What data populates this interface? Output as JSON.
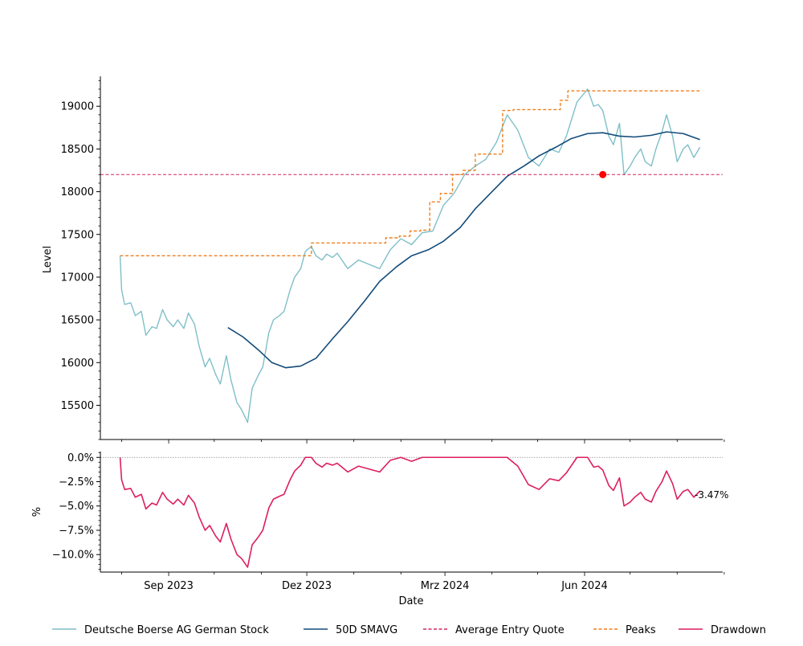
{
  "chart_data": [
    {
      "type": "line",
      "xlabel": "",
      "ylabel": "Level",
      "x_range": [
        "2023-07-18",
        "2024-08-31"
      ],
      "ylim": [
        15100,
        19350
      ],
      "yticks": [
        15500,
        16000,
        16500,
        17000,
        17500,
        18000,
        18500,
        19000
      ],
      "ytick_labels": [
        "15500",
        "16000",
        "16500",
        "17000",
        "17500",
        "18000",
        "18500",
        "19000"
      ],
      "grid": false,
      "series": [
        {
          "name": "Deutsche Boerse AG German Stock",
          "color": "#7fbfc8",
          "x": [
            "2023-07-31",
            "2023-08-01",
            "2023-08-03",
            "2023-08-07",
            "2023-08-10",
            "2023-08-14",
            "2023-08-17",
            "2023-08-21",
            "2023-08-24",
            "2023-08-28",
            "2023-08-31",
            "2023-09-04",
            "2023-09-07",
            "2023-09-11",
            "2023-09-14",
            "2023-09-18",
            "2023-09-21",
            "2023-09-25",
            "2023-09-28",
            "2023-10-02",
            "2023-10-05",
            "2023-10-09",
            "2023-10-12",
            "2023-10-16",
            "2023-10-19",
            "2023-10-23",
            "2023-10-26",
            "2023-10-30",
            "2023-11-02",
            "2023-11-06",
            "2023-11-09",
            "2023-11-13",
            "2023-11-16",
            "2023-11-20",
            "2023-11-23",
            "2023-11-27",
            "2023-11-30",
            "2023-12-04",
            "2023-12-07",
            "2023-12-11",
            "2023-12-14",
            "2023-12-18",
            "2023-12-21",
            "2023-12-28",
            "2024-01-04",
            "2024-01-11",
            "2024-01-18",
            "2024-01-25",
            "2024-02-01",
            "2024-02-08",
            "2024-02-15",
            "2024-02-22",
            "2024-02-29",
            "2024-03-07",
            "2024-03-14",
            "2024-03-21",
            "2024-03-28",
            "2024-04-04",
            "2024-04-11",
            "2024-04-18",
            "2024-04-25",
            "2024-05-02",
            "2024-05-09",
            "2024-05-15",
            "2024-05-20",
            "2024-05-27",
            "2024-06-03",
            "2024-06-07",
            "2024-06-10",
            "2024-06-13",
            "2024-06-17",
            "2024-06-20",
            "2024-06-24",
            "2024-06-27",
            "2024-07-01",
            "2024-07-04",
            "2024-07-08",
            "2024-07-11",
            "2024-07-15",
            "2024-07-18",
            "2024-07-22",
            "2024-07-25",
            "2024-07-29",
            "2024-08-01",
            "2024-08-05",
            "2024-08-08",
            "2024-08-12",
            "2024-08-16"
          ],
          "values": [
            17250,
            16850,
            16680,
            16700,
            16550,
            16600,
            16320,
            16420,
            16400,
            16620,
            16500,
            16420,
            16500,
            16400,
            16580,
            16450,
            16200,
            15950,
            16050,
            15860,
            15750,
            16080,
            15800,
            15530,
            15450,
            15300,
            15700,
            15850,
            15950,
            16350,
            16500,
            16550,
            16600,
            16850,
            17000,
            17100,
            17300,
            17360,
            17250,
            17200,
            17270,
            17230,
            17280,
            17100,
            17200,
            17150,
            17100,
            17320,
            17450,
            17380,
            17520,
            17540,
            17840,
            17980,
            18200,
            18300,
            18380,
            18580,
            18900,
            18720,
            18400,
            18300,
            18500,
            18460,
            18650,
            19050,
            19200,
            19000,
            19020,
            18950,
            18650,
            18550,
            18800,
            18200,
            18300,
            18400,
            18500,
            18350,
            18300,
            18500,
            18700,
            18900,
            18650,
            18350,
            18500,
            18550,
            18400,
            18520
          ]
        },
        {
          "name": "50D SMAVG",
          "color": "#134b7a",
          "x": [
            "2023-10-10",
            "2023-10-20",
            "2023-10-30",
            "2023-11-08",
            "2023-11-17",
            "2023-11-27",
            "2023-12-07",
            "2023-12-18",
            "2023-12-28",
            "2024-01-08",
            "2024-01-18",
            "2024-01-29",
            "2024-02-08",
            "2024-02-19",
            "2024-02-29",
            "2024-03-11",
            "2024-03-21",
            "2024-04-01",
            "2024-04-11",
            "2024-04-22",
            "2024-05-02",
            "2024-05-13",
            "2024-05-23",
            "2024-06-03",
            "2024-06-13",
            "2024-06-24",
            "2024-07-04",
            "2024-07-15",
            "2024-07-25",
            "2024-08-05",
            "2024-08-16"
          ],
          "values": [
            16410,
            16300,
            16150,
            16000,
            15940,
            15960,
            16050,
            16280,
            16480,
            16720,
            16950,
            17120,
            17250,
            17320,
            17420,
            17580,
            17800,
            18000,
            18180,
            18300,
            18420,
            18520,
            18620,
            18680,
            18690,
            18650,
            18640,
            18660,
            18700,
            18680,
            18610
          ]
        },
        {
          "name": "Average Entry Quote",
          "color": "#d0265c",
          "style": "dashed",
          "value": 18200
        },
        {
          "name": "Peaks",
          "color": "#f07f1d",
          "style": "dashed",
          "x": [
            "2023-07-31",
            "2023-11-30",
            "2023-12-04",
            "2024-01-18",
            "2024-01-22",
            "2024-01-31",
            "2024-02-07",
            "2024-02-14",
            "2024-02-20",
            "2024-02-27",
            "2024-03-06",
            "2024-03-13",
            "2024-03-21",
            "2024-04-08",
            "2024-04-15",
            "2024-05-08",
            "2024-05-16",
            "2024-05-21",
            "2024-08-16"
          ],
          "values": [
            17250,
            17250,
            17400,
            17400,
            17460,
            17480,
            17540,
            17550,
            17880,
            17980,
            18200,
            18250,
            18440,
            18950,
            18960,
            18960,
            19070,
            19180,
            19180
          ]
        }
      ],
      "markers": [
        {
          "label": "entry",
          "x": "2024-06-13",
          "y": 18200,
          "color": "#ff0000"
        }
      ]
    },
    {
      "type": "line",
      "xlabel": "Date",
      "ylabel": "%",
      "x_range": [
        "2023-07-18",
        "2024-08-31"
      ],
      "ylim": [
        -11.8,
        0.6
      ],
      "yticks": [
        0,
        -2.5,
        -5,
        -7.5,
        -10
      ],
      "ytick_labels": [
        "0.0%",
        "−2.5%",
        "−5.0%",
        "−7.5%",
        "−10.0%"
      ],
      "xticks": [
        "2023-09-01",
        "2023-12-01",
        "2024-03-01",
        "2024-06-01"
      ],
      "xtick_labels": [
        "Sep 2023",
        "Dez 2023",
        "Mrz 2024",
        "Jun 2024"
      ],
      "grid": false,
      "series": [
        {
          "name": "Drawdown",
          "color": "#dc1f5c",
          "x": [
            "2023-07-31",
            "2023-08-01",
            "2023-08-03",
            "2023-08-07",
            "2023-08-10",
            "2023-08-14",
            "2023-08-17",
            "2023-08-21",
            "2023-08-24",
            "2023-08-28",
            "2023-08-31",
            "2023-09-04",
            "2023-09-07",
            "2023-09-11",
            "2023-09-14",
            "2023-09-18",
            "2023-09-21",
            "2023-09-25",
            "2023-09-28",
            "2023-10-02",
            "2023-10-05",
            "2023-10-09",
            "2023-10-12",
            "2023-10-16",
            "2023-10-19",
            "2023-10-23",
            "2023-10-26",
            "2023-10-30",
            "2023-11-02",
            "2023-11-06",
            "2023-11-09",
            "2023-11-13",
            "2023-11-16",
            "2023-11-20",
            "2023-11-23",
            "2023-11-27",
            "2023-11-30",
            "2023-12-04",
            "2023-12-07",
            "2023-12-11",
            "2023-12-14",
            "2023-12-18",
            "2023-12-21",
            "2023-12-28",
            "2024-01-04",
            "2024-01-11",
            "2024-01-18",
            "2024-01-25",
            "2024-02-01",
            "2024-02-08",
            "2024-02-15",
            "2024-02-22",
            "2024-02-29",
            "2024-03-07",
            "2024-03-14",
            "2024-03-21",
            "2024-03-28",
            "2024-04-04",
            "2024-04-11",
            "2024-04-18",
            "2024-04-25",
            "2024-05-02",
            "2024-05-09",
            "2024-05-15",
            "2024-05-20",
            "2024-05-27",
            "2024-06-03",
            "2024-06-07",
            "2024-06-10",
            "2024-06-13",
            "2024-06-17",
            "2024-06-20",
            "2024-06-24",
            "2024-06-27",
            "2024-07-01",
            "2024-07-04",
            "2024-07-08",
            "2024-07-11",
            "2024-07-15",
            "2024-07-18",
            "2024-07-22",
            "2024-07-25",
            "2024-07-29",
            "2024-08-01",
            "2024-08-05",
            "2024-08-08",
            "2024-08-12",
            "2024-08-16"
          ],
          "values": [
            0.0,
            -2.3,
            -3.3,
            -3.2,
            -4.1,
            -3.8,
            -5.3,
            -4.7,
            -4.9,
            -3.6,
            -4.3,
            -4.8,
            -4.3,
            -4.9,
            -3.9,
            -4.7,
            -6.1,
            -7.5,
            -7.0,
            -8.1,
            -8.7,
            -6.8,
            -8.4,
            -10.0,
            -10.4,
            -11.3,
            -9.0,
            -8.2,
            -7.5,
            -5.2,
            -4.3,
            -4.0,
            -3.8,
            -2.3,
            -1.4,
            -0.8,
            0.0,
            0.0,
            -0.6,
            -1.0,
            -0.6,
            -0.8,
            -0.6,
            -1.5,
            -0.9,
            -1.2,
            -1.5,
            -0.3,
            0.0,
            -0.4,
            0.0,
            0.0,
            0.0,
            0.0,
            0.0,
            0.0,
            0.0,
            0.0,
            0.0,
            -0.9,
            -2.8,
            -3.3,
            -2.2,
            -2.4,
            -1.6,
            0.0,
            0.0,
            -1.0,
            -0.9,
            -1.3,
            -2.9,
            -3.4,
            -2.1,
            -5.0,
            -4.6,
            -4.1,
            -3.6,
            -4.3,
            -4.6,
            -3.5,
            -2.5,
            -1.4,
            -2.7,
            -4.3,
            -3.5,
            -3.3,
            -4.1,
            -3.47
          ]
        }
      ],
      "last_value_label": "-3.47%"
    }
  ],
  "legend": {
    "placement": "bottom",
    "entries": [
      {
        "label": "Deutsche Boerse AG German Stock",
        "color": "#7fbfc8",
        "style": "solid"
      },
      {
        "label": "50D SMAVG",
        "color": "#134b7a",
        "style": "solid"
      },
      {
        "label": "Average Entry Quote",
        "color": "#d0265c",
        "style": "dashed"
      },
      {
        "label": "Peaks",
        "color": "#f07f1d",
        "style": "dashed"
      },
      {
        "label": "Drawdown",
        "color": "#dc1f5c",
        "style": "solid"
      }
    ]
  }
}
